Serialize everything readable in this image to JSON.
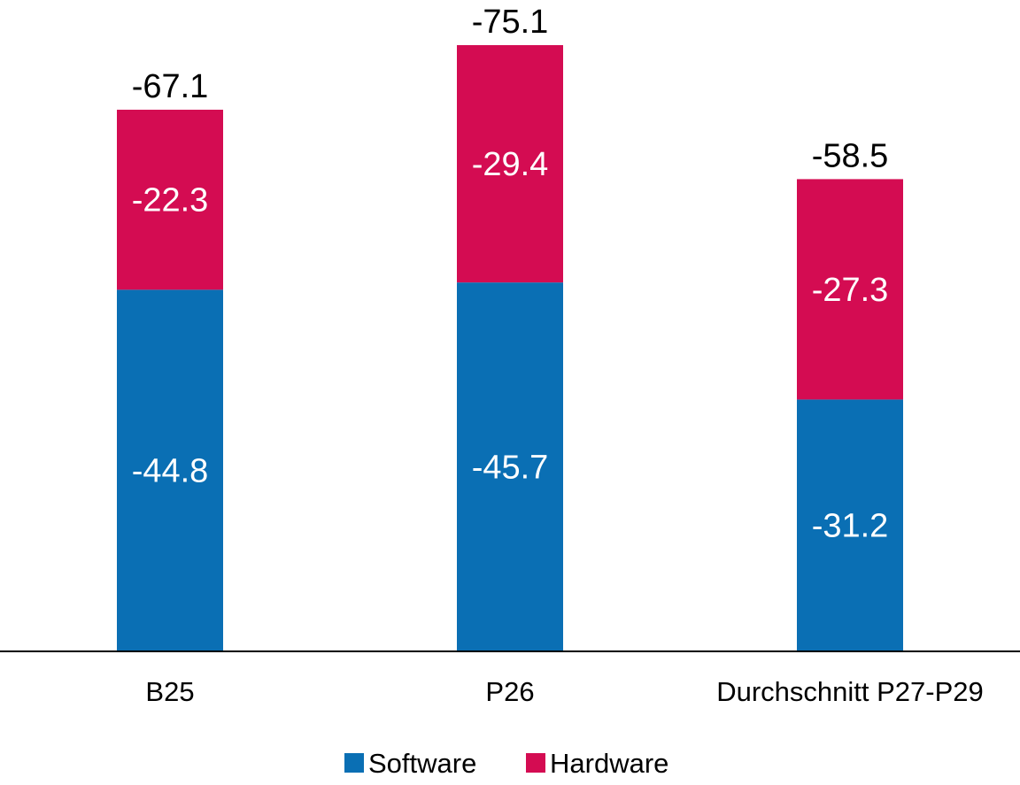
{
  "chart_data": {
    "type": "bar",
    "stacked": true,
    "categories": [
      "B25",
      "P26",
      "Durchschnitt P27-P29"
    ],
    "series": [
      {
        "name": "Software",
        "values": [
          -44.8,
          -45.7,
          -31.2
        ],
        "color": "#0a6fb4"
      },
      {
        "name": "Hardware",
        "values": [
          -22.3,
          -29.4,
          -27.3
        ],
        "color": "#d40c52"
      }
    ],
    "totals": [
      -67.1,
      -75.1,
      -58.5
    ],
    "title": "",
    "xlabel": "",
    "ylabel": "",
    "ylim": [
      -75.1,
      0
    ],
    "grid": false,
    "legend": "bottom"
  }
}
